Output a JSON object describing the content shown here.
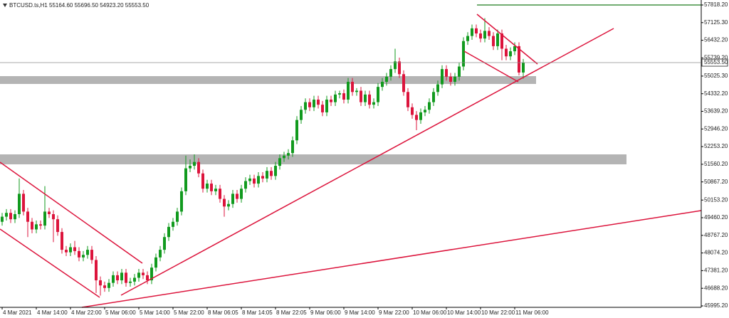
{
  "chart_data": {
    "type": "candlestick",
    "title": "BTCUSD.ts,H1  55164.60 55696.50 54923.20 55553.50",
    "up_color": "#119a1e",
    "down_color": "#dc143c",
    "ylim": [
      45939,
      58014
    ],
    "yticks": [
      {
        "value": 57818.2,
        "label": "57818.20"
      },
      {
        "value": 57125.3,
        "label": "57125.30"
      },
      {
        "value": 56432.2,
        "label": "56432.20"
      },
      {
        "value": 55739.2,
        "label": "55739.20"
      },
      {
        "value": 55025.3,
        "label": "55025.30"
      },
      {
        "value": 54332.2,
        "label": "54332.20"
      },
      {
        "value": 53639.2,
        "label": "53639.20"
      },
      {
        "value": 52946.2,
        "label": "52946.20"
      },
      {
        "value": 52253.2,
        "label": "52253.20"
      },
      {
        "value": 51560.2,
        "label": "51560.20"
      },
      {
        "value": 50867.2,
        "label": "50867.20"
      },
      {
        "value": 50153.2,
        "label": "50153.20"
      },
      {
        "value": 49460.2,
        "label": "49460.20"
      },
      {
        "value": 48767.2,
        "label": "48767.20"
      },
      {
        "value": 48074.2,
        "label": "48074.20"
      },
      {
        "value": 47381.2,
        "label": "47381.20"
      },
      {
        "value": 46688.2,
        "label": "46688.20"
      },
      {
        "value": 45995.2,
        "label": "45995.20"
      }
    ],
    "last_price": {
      "value": 55553.5,
      "label": "55553.50"
    },
    "categories": [
      "4 Mar 2021",
      null,
      null,
      null,
      null,
      null,
      null,
      null,
      "4 Mar 14:00",
      null,
      null,
      null,
      null,
      null,
      null,
      null,
      "4 Mar 22:00",
      null,
      null,
      null,
      null,
      null,
      null,
      null,
      "5 Mar 06:00",
      null,
      null,
      null,
      null,
      null,
      null,
      null,
      "5 Mar 14:00",
      null,
      null,
      null,
      null,
      null,
      null,
      null,
      "5 Mar 22:00",
      null,
      null,
      null,
      null,
      null,
      null,
      null,
      "8 Mar 06:05",
      null,
      null,
      null,
      null,
      null,
      null,
      null,
      "8 Mar 14:05",
      null,
      null,
      null,
      null,
      null,
      null,
      null,
      "8 Mar 22:05",
      null,
      null,
      null,
      null,
      null,
      null,
      null,
      "9 Mar 06:00",
      null,
      null,
      null,
      null,
      null,
      null,
      null,
      "9 Mar 14:00",
      null,
      null,
      null,
      null,
      null,
      null,
      null,
      "9 Mar 22:00",
      null,
      null,
      null,
      null,
      null,
      null,
      null,
      "10 Mar 06:00",
      null,
      null,
      null,
      null,
      null,
      null,
      null,
      "10 Mar 14:00",
      null,
      null,
      null,
      null,
      null,
      null,
      null,
      "10 Mar 22:00",
      null,
      null,
      null,
      null,
      null,
      null,
      null,
      "11 Mar 06:00",
      null,
      null
    ],
    "ohlc": [
      [
        49300,
        49650,
        49150,
        49500
      ],
      [
        49500,
        49800,
        49350,
        49650
      ],
      [
        49650,
        49800,
        49250,
        49400
      ],
      [
        49400,
        49750,
        49250,
        49600
      ],
      [
        49600,
        51000,
        49450,
        50400
      ],
      [
        50400,
        50550,
        49550,
        49700
      ],
      [
        49700,
        49850,
        48700,
        49300
      ],
      [
        49300,
        49450,
        48850,
        49000
      ],
      [
        49000,
        49350,
        48850,
        49200
      ],
      [
        49200,
        49350,
        49000,
        49150
      ],
      [
        49150,
        50700,
        49000,
        49700
      ],
      [
        49700,
        49850,
        49450,
        49600
      ],
      [
        49600,
        49750,
        48500,
        49400
      ],
      [
        49400,
        49550,
        48750,
        48900
      ],
      [
        48900,
        49050,
        48050,
        48200
      ],
      [
        48200,
        48350,
        47950,
        48100
      ],
      [
        48100,
        48450,
        47950,
        48300
      ],
      [
        48300,
        48550,
        48000,
        48150
      ],
      [
        48150,
        48300,
        47750,
        47900
      ],
      [
        47900,
        48150,
        47750,
        48000
      ],
      [
        48000,
        48350,
        47850,
        48200
      ],
      [
        48200,
        48350,
        47650,
        47800
      ],
      [
        47800,
        47950,
        46500,
        47000
      ],
      [
        47000,
        47150,
        46400,
        46800
      ],
      [
        46800,
        46950,
        46550,
        46700
      ],
      [
        46700,
        47050,
        46550,
        46900
      ],
      [
        46900,
        47350,
        46750,
        47200
      ],
      [
        47200,
        47350,
        46850,
        47000
      ],
      [
        47000,
        47450,
        46850,
        47300
      ],
      [
        47300,
        47450,
        46750,
        46900
      ],
      [
        46900,
        47100,
        46750,
        46950
      ],
      [
        46950,
        47250,
        46800,
        47100
      ],
      [
        47100,
        47450,
        46950,
        47300
      ],
      [
        47300,
        47450,
        47050,
        47200
      ],
      [
        47200,
        47350,
        46850,
        47000
      ],
      [
        47000,
        47650,
        46850,
        47500
      ],
      [
        47500,
        48050,
        47350,
        47900
      ],
      [
        47900,
        48350,
        47750,
        48200
      ],
      [
        48200,
        48850,
        48050,
        48700
      ],
      [
        48700,
        49250,
        48550,
        49100
      ],
      [
        49100,
        49450,
        48950,
        49300
      ],
      [
        49300,
        49850,
        49150,
        49700
      ],
      [
        49700,
        50650,
        49550,
        50500
      ],
      [
        50500,
        51900,
        50350,
        51400
      ],
      [
        51400,
        51750,
        51250,
        51500
      ],
      [
        51500,
        51950,
        51350,
        51650
      ],
      [
        51650,
        51800,
        51050,
        51200
      ],
      [
        51200,
        51350,
        50450,
        50600
      ],
      [
        50600,
        50950,
        50450,
        50800
      ],
      [
        50800,
        50950,
        50350,
        50500
      ],
      [
        50500,
        50750,
        50350,
        50600
      ],
      [
        50600,
        50750,
        50050,
        50200
      ],
      [
        50200,
        50350,
        49500,
        49900
      ],
      [
        49900,
        50150,
        49750,
        50000
      ],
      [
        50000,
        50550,
        49850,
        50400
      ],
      [
        50400,
        50550,
        50050,
        50200
      ],
      [
        50200,
        50750,
        50050,
        50600
      ],
      [
        50600,
        51050,
        50450,
        50900
      ],
      [
        50900,
        51150,
        50750,
        51000
      ],
      [
        51000,
        51150,
        50650,
        50800
      ],
      [
        50800,
        51250,
        50650,
        51100
      ],
      [
        51100,
        51250,
        50850,
        51000
      ],
      [
        51000,
        51450,
        50850,
        51300
      ],
      [
        51300,
        51450,
        50950,
        51100
      ],
      [
        51100,
        51650,
        50950,
        51500
      ],
      [
        51500,
        51950,
        51350,
        51800
      ],
      [
        51800,
        52050,
        51650,
        51900
      ],
      [
        51900,
        52150,
        51750,
        52000
      ],
      [
        52000,
        52650,
        51850,
        52500
      ],
      [
        52500,
        53450,
        52350,
        53300
      ],
      [
        53300,
        53850,
        53150,
        53700
      ],
      [
        53700,
        54150,
        53550,
        54000
      ],
      [
        54000,
        54150,
        53650,
        53800
      ],
      [
        53800,
        54250,
        53650,
        54100
      ],
      [
        54100,
        54250,
        53750,
        53900
      ],
      [
        53900,
        54050,
        53450,
        53600
      ],
      [
        53600,
        54250,
        53450,
        54100
      ],
      [
        54100,
        54250,
        53850,
        54000
      ],
      [
        54000,
        54450,
        53850,
        54300
      ],
      [
        54300,
        54450,
        54150,
        54350
      ],
      [
        54350,
        54500,
        53950,
        54100
      ],
      [
        54100,
        54950,
        53950,
        54800
      ],
      [
        54800,
        54950,
        54250,
        54400
      ],
      [
        54400,
        54550,
        54250,
        54450
      ],
      [
        54450,
        54600,
        53850,
        54000
      ],
      [
        54000,
        54450,
        53850,
        54300
      ],
      [
        54300,
        54450,
        53750,
        53900
      ],
      [
        53900,
        54150,
        53750,
        54000
      ],
      [
        54000,
        54750,
        53850,
        54600
      ],
      [
        54600,
        54950,
        54450,
        54800
      ],
      [
        54800,
        55150,
        54650,
        55000
      ],
      [
        55000,
        55450,
        54850,
        55300
      ],
      [
        55300,
        56100,
        55150,
        55600
      ],
      [
        55600,
        55750,
        54950,
        55100
      ],
      [
        55100,
        55250,
        54250,
        54400
      ],
      [
        54400,
        54550,
        53650,
        53800
      ],
      [
        53800,
        53950,
        53350,
        53500
      ],
      [
        53500,
        53650,
        52900,
        53300
      ],
      [
        53300,
        53750,
        53150,
        53600
      ],
      [
        53600,
        53850,
        53450,
        53700
      ],
      [
        53700,
        54150,
        53550,
        54000
      ],
      [
        54000,
        54550,
        53850,
        54400
      ],
      [
        54400,
        54850,
        54250,
        54700
      ],
      [
        54700,
        55450,
        54550,
        55300
      ],
      [
        55300,
        55450,
        54850,
        55000
      ],
      [
        55000,
        55150,
        54650,
        54800
      ],
      [
        54800,
        55150,
        54650,
        55000
      ],
      [
        55000,
        55550,
        54850,
        55400
      ],
      [
        55400,
        56550,
        55250,
        56400
      ],
      [
        56400,
        56750,
        56250,
        56600
      ],
      [
        56600,
        57050,
        56450,
        56900
      ],
      [
        56900,
        57050,
        56550,
        56700
      ],
      [
        56700,
        56850,
        56350,
        56500
      ],
      [
        56500,
        57300,
        56350,
        56800
      ],
      [
        56800,
        56950,
        56450,
        56600
      ],
      [
        56600,
        56750,
        56050,
        56200
      ],
      [
        56200,
        56850,
        56050,
        56700
      ],
      [
        56700,
        56850,
        55650,
        56100
      ],
      [
        56100,
        56250,
        55650,
        55800
      ],
      [
        55800,
        56150,
        55650,
        56000
      ],
      [
        56000,
        56350,
        55850,
        56200
      ],
      [
        56200,
        56350,
        55050,
        55164.6
      ],
      [
        55164.6,
        55696.5,
        54923.2,
        55553.5
      ]
    ]
  }
}
